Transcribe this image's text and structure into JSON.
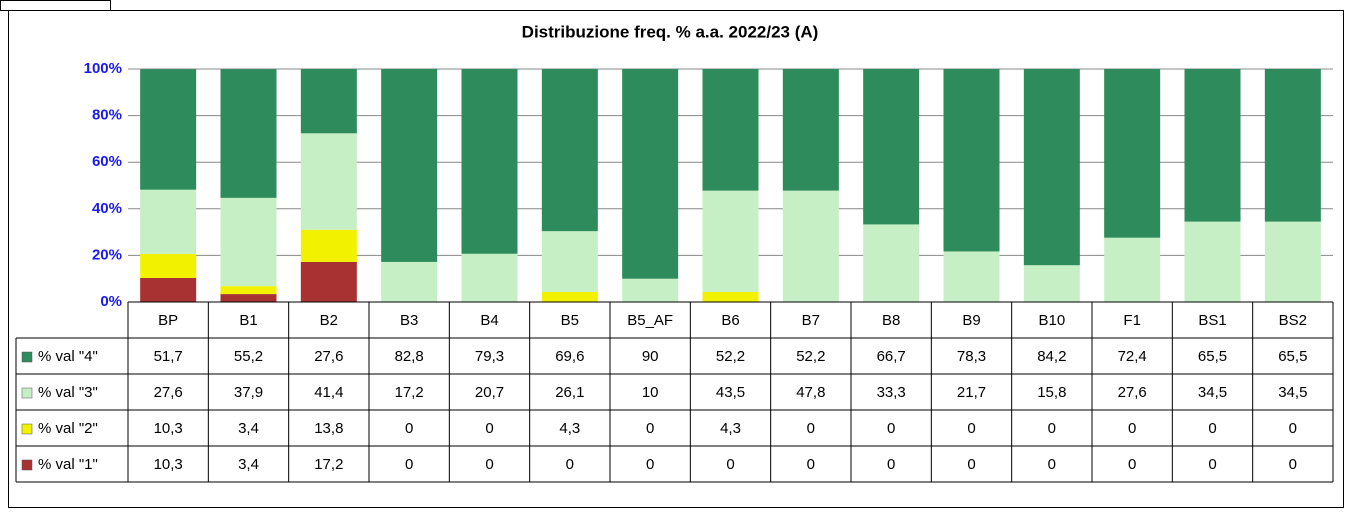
{
  "chart_data": {
    "type": "stacked_bar",
    "title": "Distribuzione freq. % a.a. 2022/23 (A)",
    "categories": [
      "BP",
      "B1",
      "B2",
      "B3",
      "B4",
      "B5",
      "B5_AF",
      "B6",
      "B7",
      "B8",
      "B9",
      "B10",
      "F1",
      "BS1",
      "BS2"
    ],
    "series": [
      {
        "name": "% val \"4\"",
        "color": "#2e8b5c",
        "values": [
          51.7,
          55.2,
          27.6,
          82.8,
          79.3,
          69.6,
          90,
          52.2,
          52.2,
          66.7,
          78.3,
          84.2,
          72.4,
          65.5,
          65.5
        ],
        "value_labels": [
          "51,7",
          "55,2",
          "27,6",
          "82,8",
          "79,3",
          "69,6",
          "90",
          "52,2",
          "52,2",
          "66,7",
          "78,3",
          "84,2",
          "72,4",
          "65,5",
          "65,5"
        ]
      },
      {
        "name": "% val \"3\"",
        "color": "#c6efc6",
        "values": [
          27.6,
          37.9,
          41.4,
          17.2,
          20.7,
          26.1,
          10,
          43.5,
          47.8,
          33.3,
          21.7,
          15.8,
          27.6,
          34.5,
          34.5
        ],
        "value_labels": [
          "27,6",
          "37,9",
          "41,4",
          "17,2",
          "20,7",
          "26,1",
          "10",
          "43,5",
          "47,8",
          "33,3",
          "21,7",
          "15,8",
          "27,6",
          "34,5",
          "34,5"
        ]
      },
      {
        "name": "% val \"2\"",
        "color": "#f2f200",
        "values": [
          10.3,
          3.4,
          13.8,
          0,
          0,
          4.3,
          0,
          4.3,
          0,
          0,
          0,
          0,
          0,
          0,
          0
        ],
        "value_labels": [
          "10,3",
          "3,4",
          "13,8",
          "0",
          "0",
          "4,3",
          "0",
          "4,3",
          "0",
          "0",
          "0",
          "0",
          "0",
          "0",
          "0"
        ]
      },
      {
        "name": "% val \"1\"",
        "color": "#a83232",
        "values": [
          10.3,
          3.4,
          17.2,
          0,
          0,
          0,
          0,
          0,
          0,
          0,
          0,
          0,
          0,
          0,
          0
        ],
        "value_labels": [
          "10,3",
          "3,4",
          "17,2",
          "0",
          "0",
          "0",
          "0",
          "0",
          "0",
          "0",
          "0",
          "0",
          "0",
          "0",
          "0"
        ]
      }
    ],
    "ylim": [
      0,
      100
    ],
    "yticks": [
      {
        "value": 0,
        "label": "0%"
      },
      {
        "value": 20,
        "label": "20%"
      },
      {
        "value": 40,
        "label": "40%"
      },
      {
        "value": 60,
        "label": "60%"
      },
      {
        "value": 80,
        "label": "80%"
      },
      {
        "value": 100,
        "label": "100%"
      }
    ],
    "grid": true
  }
}
